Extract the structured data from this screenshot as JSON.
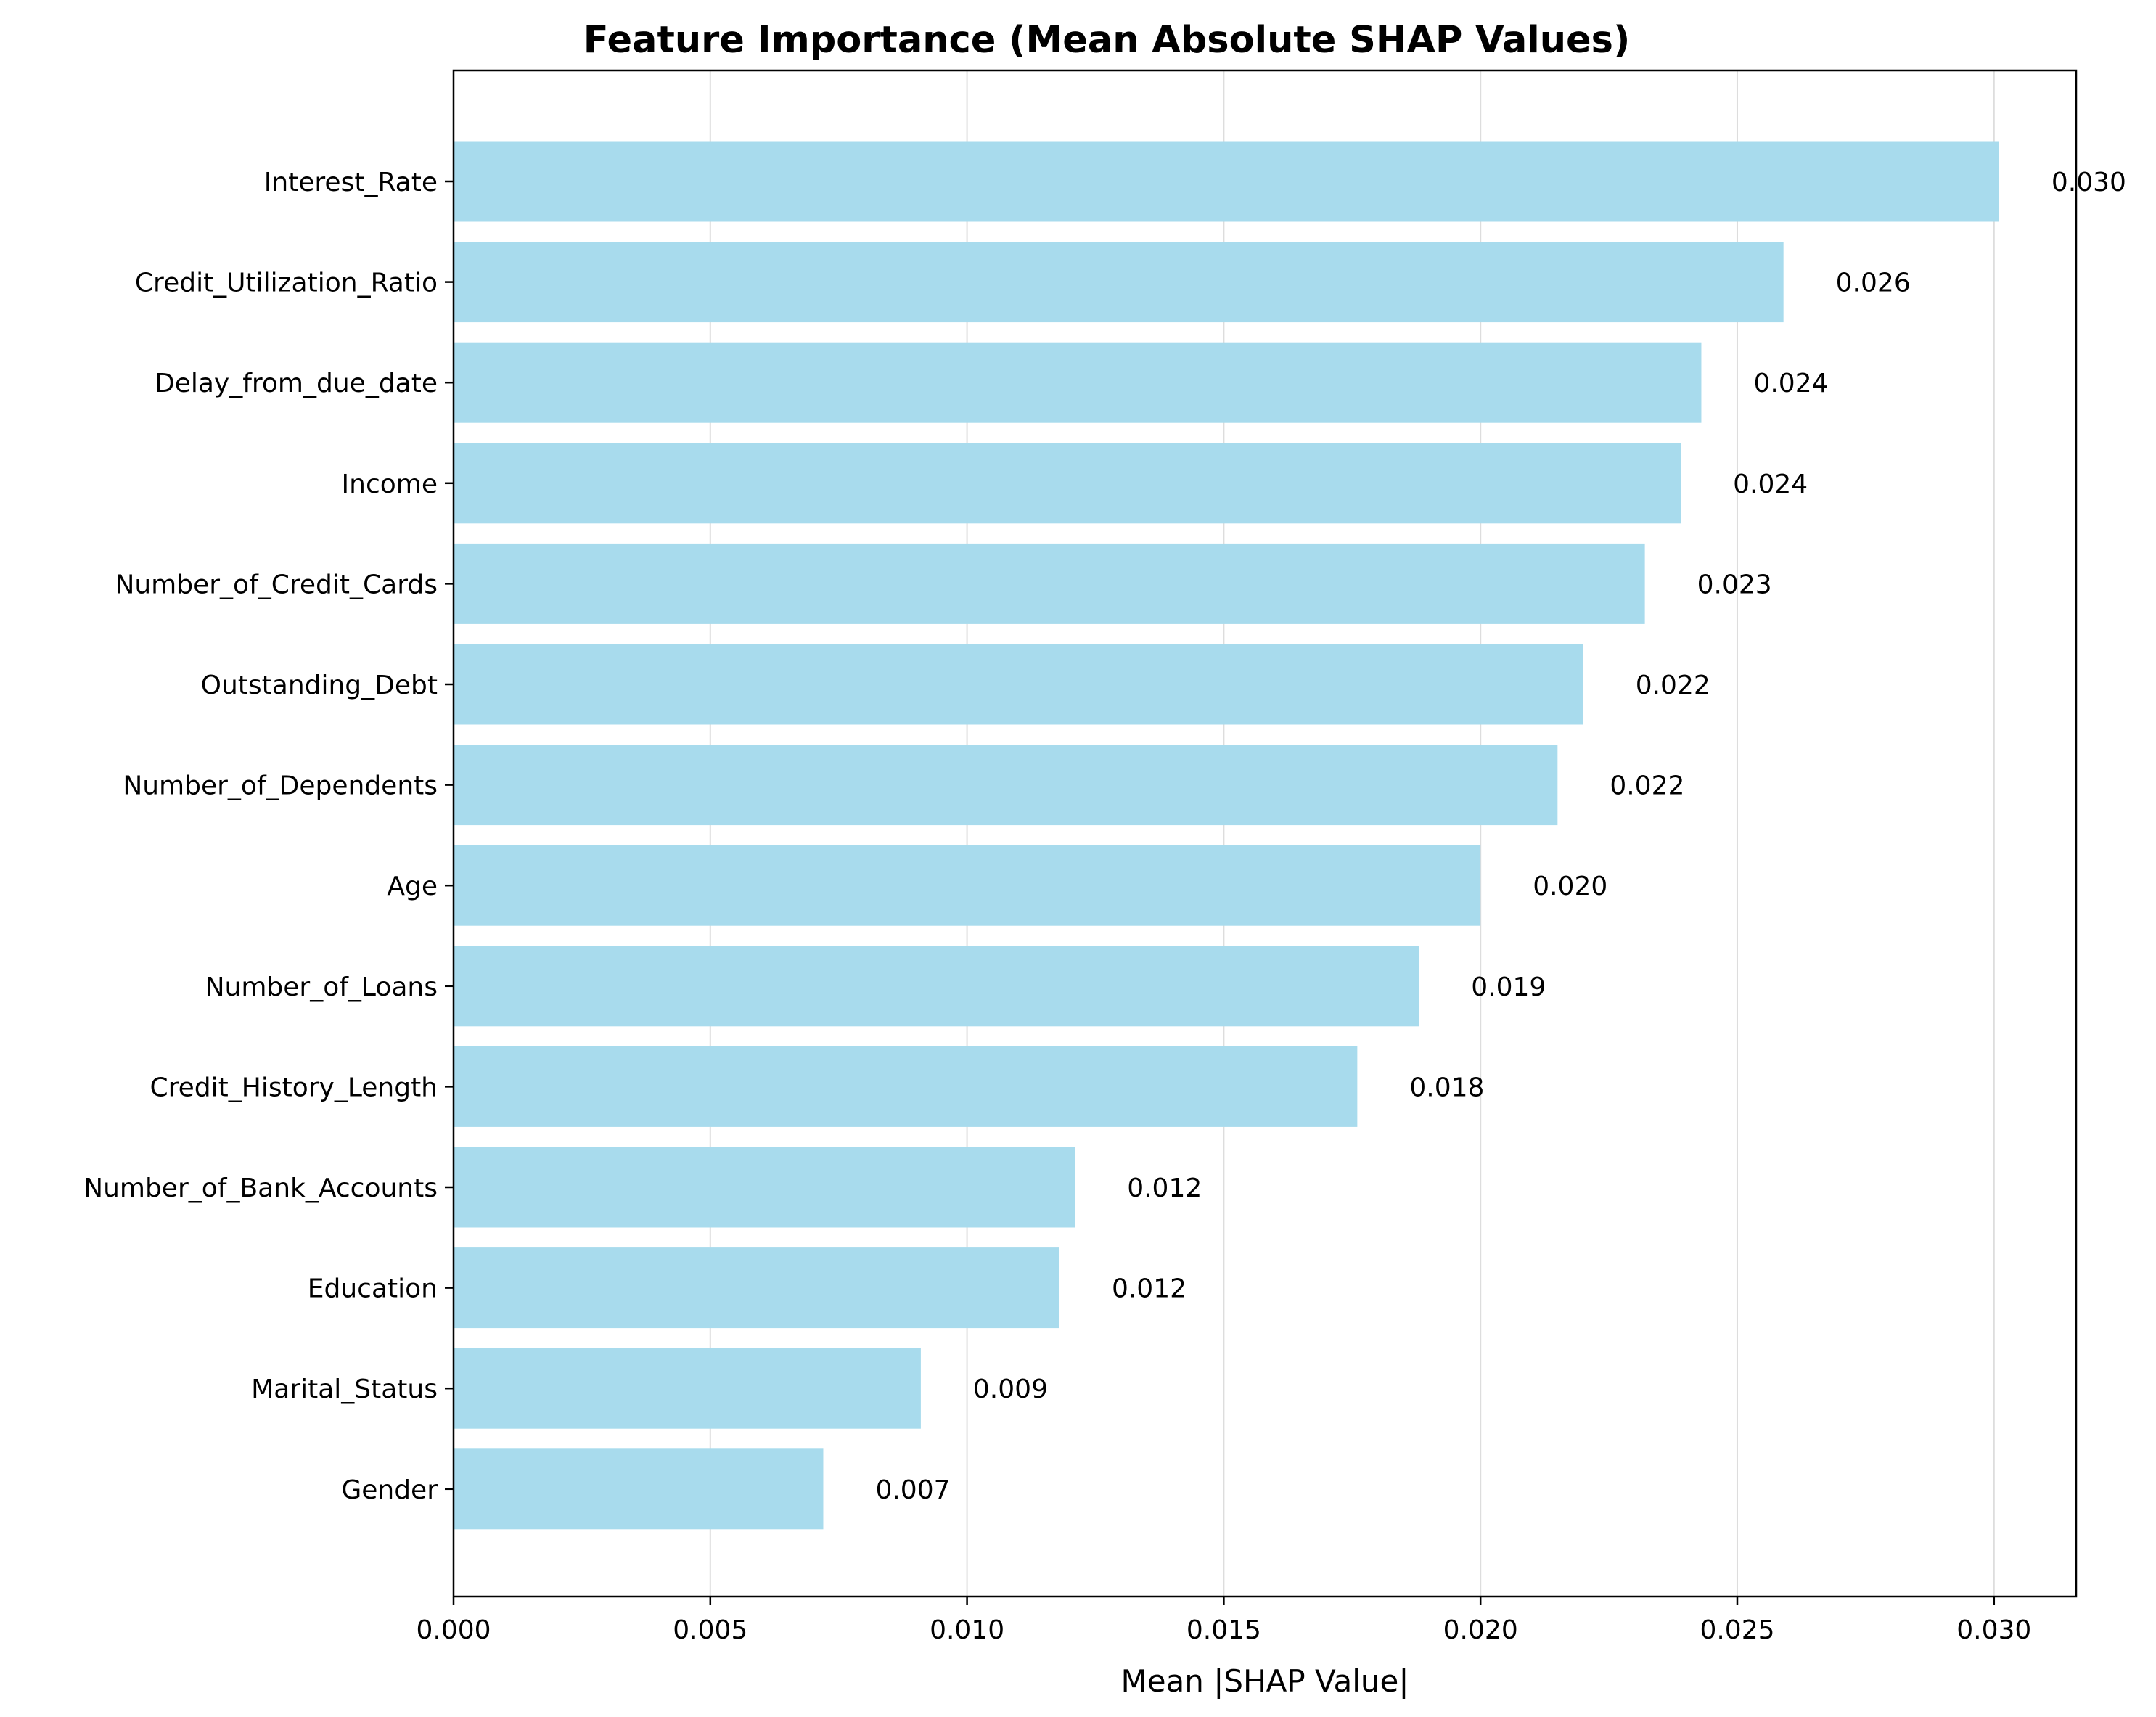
{
  "chart_data": {
    "type": "bar",
    "orientation": "horizontal",
    "title": "Feature Importance (Mean Absolute SHAP Values)",
    "xlabel": "Mean |SHAP Value|",
    "ylabel": "",
    "xlim": [
      0,
      0.0316
    ],
    "xticks": [
      "0.000",
      "0.005",
      "0.010",
      "0.015",
      "0.020",
      "0.025",
      "0.030"
    ],
    "xtick_values": [
      0,
      0.005,
      0.01,
      0.015,
      0.02,
      0.025,
      0.03
    ],
    "grid": "x-axis vertical lines",
    "bar_color": "#a8dbed",
    "categories": [
      "Interest_Rate",
      "Credit_Utilization_Ratio",
      "Delay_from_due_date",
      "Income",
      "Number_of_Credit_Cards",
      "Outstanding_Debt",
      "Number_of_Dependents",
      "Age",
      "Number_of_Loans",
      "Credit_History_Length",
      "Number_of_Bank_Accounts",
      "Education",
      "Marital_Status",
      "Gender"
    ],
    "values": [
      0.0301,
      0.0259,
      0.0243,
      0.0239,
      0.0232,
      0.022,
      0.0215,
      0.02,
      0.0188,
      0.0176,
      0.0121,
      0.0118,
      0.0091,
      0.0072
    ],
    "data_labels": [
      "0.030",
      "0.026",
      "0.024",
      "0.024",
      "0.023",
      "0.022",
      "0.022",
      "0.020",
      "0.019",
      "0.018",
      "0.012",
      "0.012",
      "0.009",
      "0.007"
    ]
  }
}
